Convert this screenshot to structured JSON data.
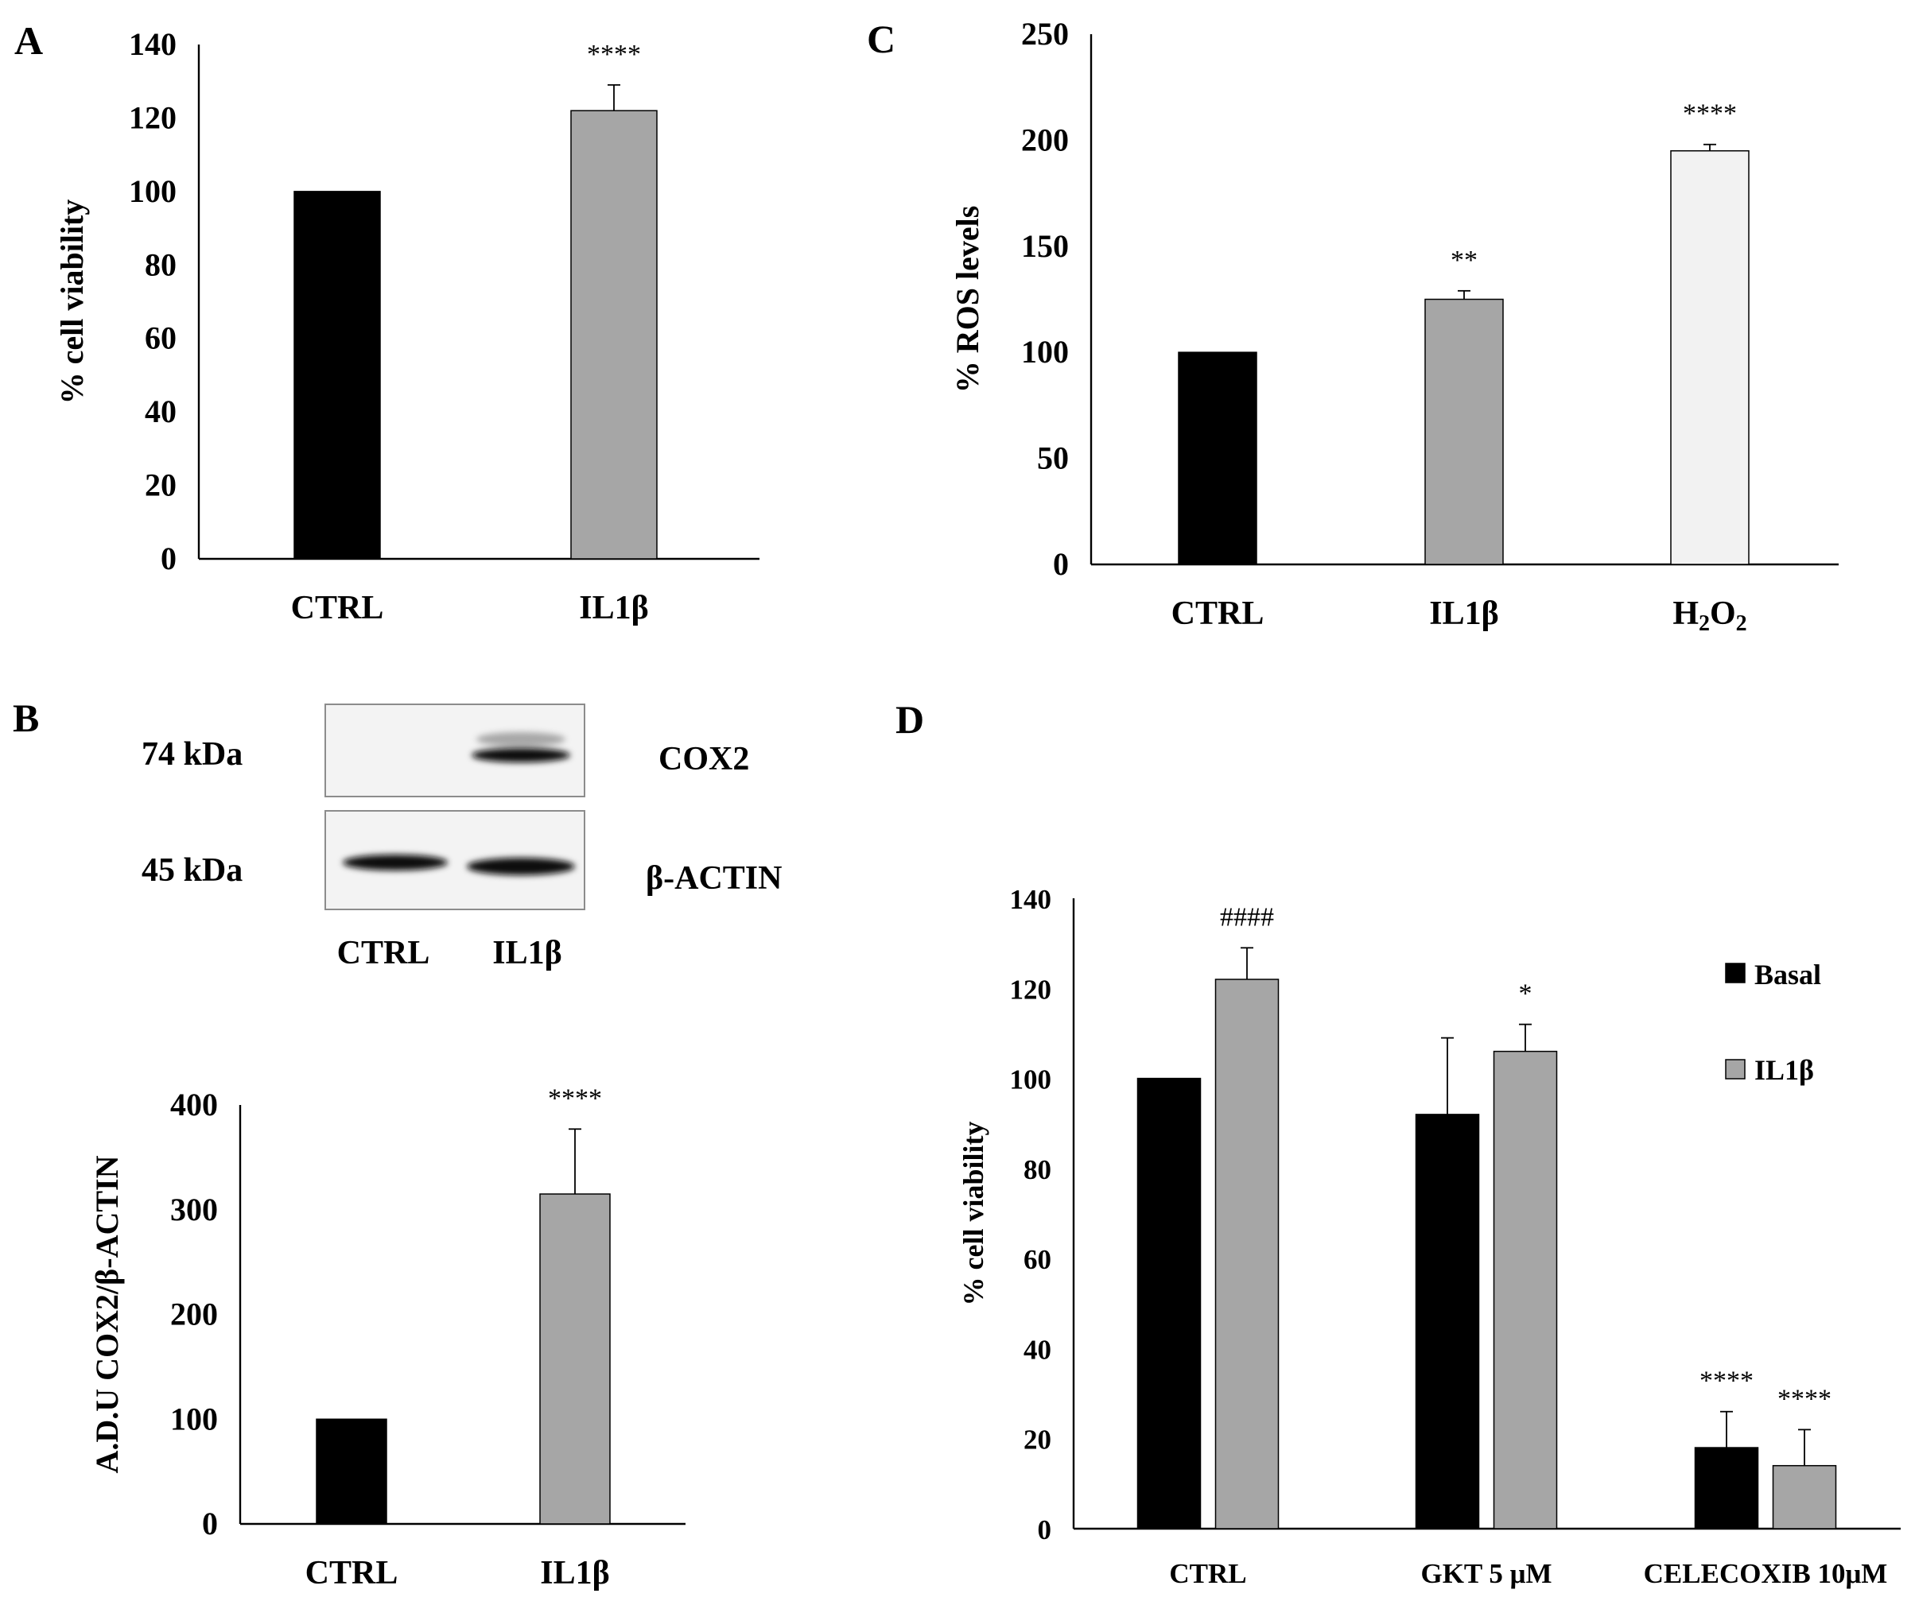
{
  "colors": {
    "basal": "#000000",
    "il1b": "#a6a6a6",
    "h2o2": "#f2f2f2",
    "axis": "#000000"
  },
  "panels": {
    "A": {
      "letter": "A"
    },
    "B": {
      "letter": "B"
    },
    "C": {
      "letter": "C"
    },
    "D": {
      "letter": "D"
    }
  },
  "blot": {
    "rows": [
      {
        "size_label": "74 kDa",
        "protein_label": "COX2"
      },
      {
        "size_label": "45 kDa",
        "protein_label": "β-ACTIN"
      }
    ],
    "lanes": [
      "CTRL",
      "IL1β"
    ]
  },
  "chart_data": [
    {
      "id": "A",
      "type": "bar",
      "title": "",
      "xlabel": "",
      "ylabel": "% cell viability",
      "ylim": [
        0,
        140
      ],
      "yticks": [
        0,
        20,
        40,
        60,
        80,
        100,
        120,
        140
      ],
      "categories": [
        "CTRL",
        "IL1β"
      ],
      "values": [
        100,
        122
      ],
      "errors": [
        0,
        7
      ],
      "annotations": [
        "",
        "****"
      ]
    },
    {
      "id": "B",
      "type": "bar",
      "title": "",
      "xlabel": "",
      "ylabel": "A.D.U COX2/β-ACTIN",
      "ylim": [
        0,
        400
      ],
      "yticks": [
        0,
        100,
        200,
        300,
        400
      ],
      "categories": [
        "CTRL",
        "IL1β"
      ],
      "values": [
        100,
        315
      ],
      "errors": [
        0,
        62
      ],
      "annotations": [
        "",
        "****"
      ]
    },
    {
      "id": "C",
      "type": "bar",
      "title": "",
      "xlabel": "",
      "ylabel": "% ROS levels",
      "ylim": [
        0,
        250
      ],
      "yticks": [
        0,
        50,
        100,
        150,
        200,
        250
      ],
      "categories": [
        "CTRL",
        "IL1β",
        "H2O2"
      ],
      "values": [
        100,
        125,
        195
      ],
      "errors": [
        0,
        4,
        3
      ],
      "annotations": [
        "",
        "**",
        "****"
      ]
    },
    {
      "id": "D",
      "type": "bar",
      "title": "",
      "xlabel": "",
      "ylabel": "% cell viability",
      "ylim": [
        0,
        140
      ],
      "yticks": [
        0,
        20,
        40,
        60,
        80,
        100,
        120,
        140
      ],
      "categories": [
        "CTRL",
        "GKT 5 μM",
        "CELECOXIB 10μM"
      ],
      "legend_position": "top-right",
      "series": [
        {
          "name": "Basal",
          "values": [
            100,
            92,
            18
          ],
          "errors": [
            0,
            17,
            8
          ],
          "annotations": [
            "",
            "",
            "****"
          ]
        },
        {
          "name": "IL1β",
          "values": [
            122,
            106,
            14
          ],
          "errors": [
            7,
            6,
            8
          ],
          "annotations": [
            "####",
            "*",
            "****"
          ]
        }
      ]
    }
  ]
}
